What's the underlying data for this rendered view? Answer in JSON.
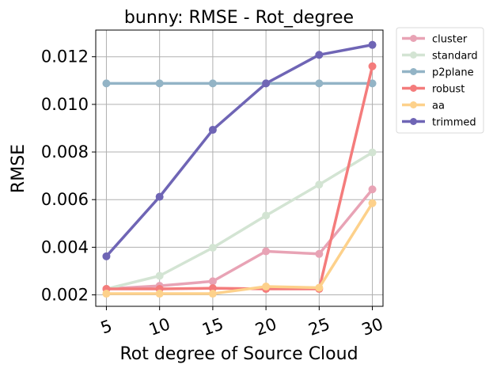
{
  "chart_data": {
    "type": "line",
    "title": "bunny: RMSE - Rot_degree",
    "xlabel": "Rot degree of Source Cloud",
    "ylabel": "RMSE",
    "x": [
      5,
      10,
      15,
      20,
      25,
      30
    ],
    "xlim": [
      4,
      31
    ],
    "ylim": [
      0.00152,
      0.01312
    ],
    "yticks": [
      0.002,
      0.004,
      0.006,
      0.008,
      0.01,
      0.012
    ],
    "ytick_labels": [
      "0.002",
      "0.004",
      "0.006",
      "0.008",
      "0.010",
      "0.012"
    ],
    "xtick_labels": [
      "5",
      "10",
      "15",
      "20",
      "25",
      "30"
    ],
    "grid": true,
    "legend_position": "outside-top-right",
    "series": [
      {
        "name": "cluster",
        "color": "#e8a3b5",
        "values": [
          0.00225,
          0.00238,
          0.00257,
          0.00383,
          0.00372,
          0.00643
        ]
      },
      {
        "name": "standard",
        "color": "#d3e4d3",
        "values": [
          0.00225,
          0.0028,
          0.00398,
          0.00533,
          0.00663,
          0.00798
        ]
      },
      {
        "name": "p2plane",
        "color": "#93b4c6",
        "values": [
          0.01088,
          0.01088,
          0.01088,
          0.01088,
          0.01088,
          0.01088
        ]
      },
      {
        "name": "robust",
        "color": "#f47c7c",
        "values": [
          0.00225,
          0.00225,
          0.00228,
          0.00225,
          0.00225,
          0.0116
        ]
      },
      {
        "name": "aa",
        "color": "#fdd18b",
        "values": [
          0.00205,
          0.00205,
          0.00205,
          0.00235,
          0.0023,
          0.00585
        ]
      },
      {
        "name": "trimmed",
        "color": "#6f65b5",
        "values": [
          0.00362,
          0.00612,
          0.00893,
          0.01088,
          0.01208,
          0.0125
        ]
      }
    ]
  }
}
